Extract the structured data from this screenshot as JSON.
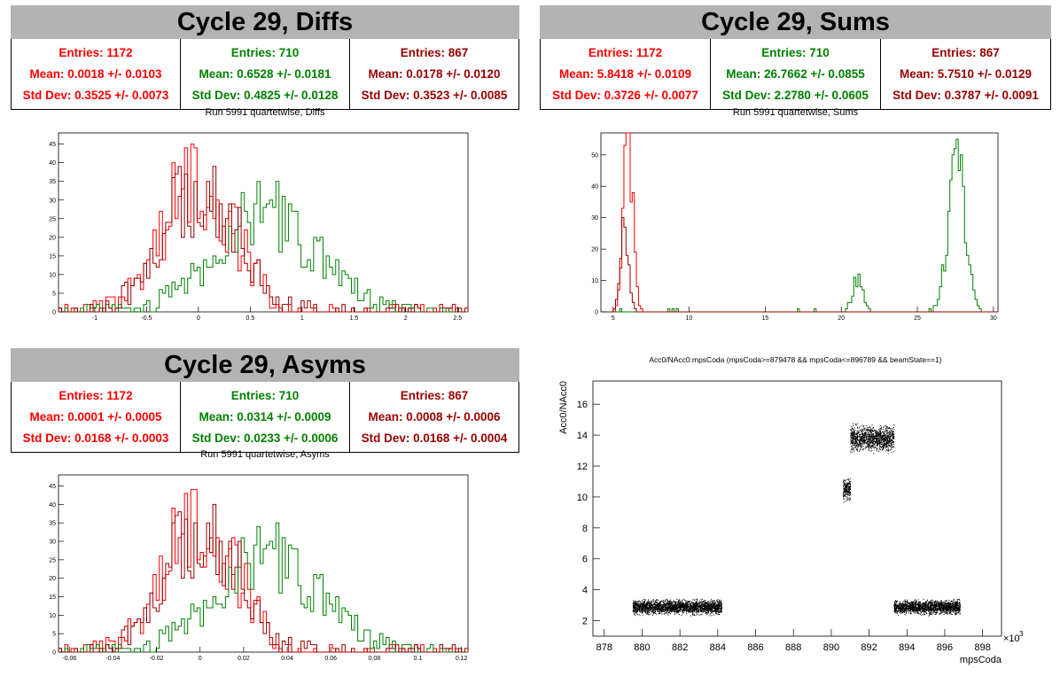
{
  "colors": {
    "red": "#ff0000",
    "green": "#008000",
    "darkred": "#990000",
    "banner": "#b3b3b3"
  },
  "panels": {
    "diffs": {
      "banner": "Cycle 29, Diffs",
      "subtitle": "Run 5991 quartetwise, Diffs",
      "stats": [
        {
          "entries": "Entries: 1172",
          "mean": "Mean: 0.0018 +/- 0.0103",
          "std": "Std Dev: 0.3525 +/- 0.0073"
        },
        {
          "entries": "Entries: 710",
          "mean": "Mean: 0.6528 +/- 0.0181",
          "std": "Std Dev: 0.4825 +/- 0.0128"
        },
        {
          "entries": "Entries: 867",
          "mean": "Mean: 0.0178 +/- 0.0120",
          "std": "Std Dev: 0.3523 +/- 0.0085"
        }
      ]
    },
    "sums": {
      "banner": "Cycle 29, Sums",
      "subtitle": "Run 5991 quartetwise, Sums",
      "stats": [
        {
          "entries": "Entries: 1172",
          "mean": "Mean: 5.8418 +/- 0.0109",
          "std": "Std Dev: 0.3726 +/- 0.0077"
        },
        {
          "entries": "Entries: 710",
          "mean": "Mean: 26.7662 +/- 0.0855",
          "std": "Std Dev: 2.2780 +/- 0.0605"
        },
        {
          "entries": "Entries: 867",
          "mean": "Mean: 5.7510 +/- 0.0129",
          "std": "Std Dev: 0.3787 +/- 0.0091"
        }
      ]
    },
    "asyms": {
      "banner": "Cycle 29, Asyms",
      "subtitle": "Run 5991 quartetwise, Asyms",
      "stats": [
        {
          "entries": "Entries: 1172",
          "mean": "Mean: 0.0001 +/- 0.0005",
          "std": "Std Dev: 0.0168 +/- 0.0003"
        },
        {
          "entries": "Entries: 710",
          "mean": "Mean: 0.0314 +/- 0.0009",
          "std": "Std Dev: 0.0233 +/- 0.0006"
        },
        {
          "entries": "Entries: 867",
          "mean": "Mean: 0.0008 +/- 0.0006",
          "std": "Std Dev: 0.0168 +/- 0.0004"
        }
      ]
    },
    "scatter": {
      "title": "Acc0/NAcc0:mpsCoda (mpsCoda>=879478 && mpsCoda<=896789 && beamState==1)"
    }
  },
  "chart_data": [
    {
      "type": "histogram",
      "xlim": [
        -1.35,
        2.6
      ],
      "ylim": [
        0,
        48
      ],
      "xticks": [
        "-1",
        "-0.5",
        "0",
        "0.5",
        "1",
        "1.5",
        "2",
        "2.5"
      ],
      "yticks": [
        "0",
        "5",
        "10",
        "15",
        "20",
        "25",
        "30",
        "35",
        "40",
        "45"
      ],
      "series": [
        {
          "color": "red",
          "peak_x": 0.0,
          "peak_y": 46,
          "mean": 0.0018,
          "std": 0.3525,
          "entries": 1172
        },
        {
          "color": "green",
          "peak_x": 0.65,
          "peak_y": 34,
          "mean": 0.6528,
          "std": 0.4825,
          "entries": 710
        },
        {
          "color": "darkred",
          "peak_x": 0.02,
          "peak_y": 45,
          "mean": 0.0178,
          "std": 0.3523,
          "entries": 867
        }
      ]
    },
    {
      "type": "histogram",
      "xlim": [
        4.2,
        30.3
      ],
      "ylim": [
        0,
        57
      ],
      "xticks": [
        "5",
        "10",
        "15",
        "20",
        "25",
        "30"
      ],
      "yticks": [
        "0",
        "10",
        "20",
        "30",
        "40",
        "50"
      ],
      "series": [
        {
          "color": "red",
          "peak_x": 6.0,
          "peak_y": 54,
          "entries": 1172
        },
        {
          "color": "green",
          "peak_x": 27.6,
          "peak_y": 49,
          "secondary_peak_x": 21.1,
          "secondary_peak_y": 11,
          "entries": 710
        },
        {
          "color": "darkred",
          "peak_x": 5.75,
          "peak_y": 28,
          "entries": 867
        }
      ]
    },
    {
      "type": "histogram",
      "xlim": [
        -0.065,
        0.123
      ],
      "ylim": [
        0,
        48
      ],
      "xticks": [
        "-0.06",
        "-0.04",
        "-0.02",
        "0",
        "0.02",
        "0.04",
        "0.06",
        "0.08",
        "0.1",
        "0.12"
      ],
      "yticks": [
        "0",
        "5",
        "10",
        "15",
        "20",
        "25",
        "30",
        "35",
        "40",
        "45"
      ],
      "series": [
        {
          "color": "red",
          "peak_x": 0.004,
          "peak_y": 46,
          "mean": 0.0001,
          "std": 0.0168,
          "entries": 1172
        },
        {
          "color": "green",
          "peak_x": 0.032,
          "peak_y": 34,
          "mean": 0.0314,
          "std": 0.0233,
          "entries": 710
        },
        {
          "color": "darkred",
          "peak_x": 0.002,
          "peak_y": 45,
          "mean": 0.0008,
          "std": 0.0168,
          "entries": 867
        }
      ]
    },
    {
      "type": "scatter",
      "xlabel": "mpsCoda",
      "ylabel": "Acc0/NAcc0",
      "xlim": [
        877.4,
        899.0
      ],
      "ylim": [
        1.0,
        17.5
      ],
      "x_multiplier": "×10",
      "x_multiplier_exp": "3",
      "xticks": [
        "878",
        "880",
        "882",
        "884",
        "886",
        "888",
        "890",
        "892",
        "894",
        "896",
        "898"
      ],
      "yticks": [
        "2",
        "4",
        "6",
        "8",
        "10",
        "12",
        "14",
        "16"
      ],
      "clusters": [
        {
          "x_range": [
            879.5,
            884.2
          ],
          "y_center": 2.9,
          "y_spread": 0.6
        },
        {
          "x_range": [
            890.6,
            891.0
          ],
          "y_center": 10.5,
          "y_spread": 0.9
        },
        {
          "x_range": [
            891.0,
            893.3
          ],
          "y_center": 13.8,
          "y_spread": 1.1
        },
        {
          "x_range": [
            893.3,
            896.8
          ],
          "y_center": 2.9,
          "y_spread": 0.6
        }
      ]
    }
  ]
}
